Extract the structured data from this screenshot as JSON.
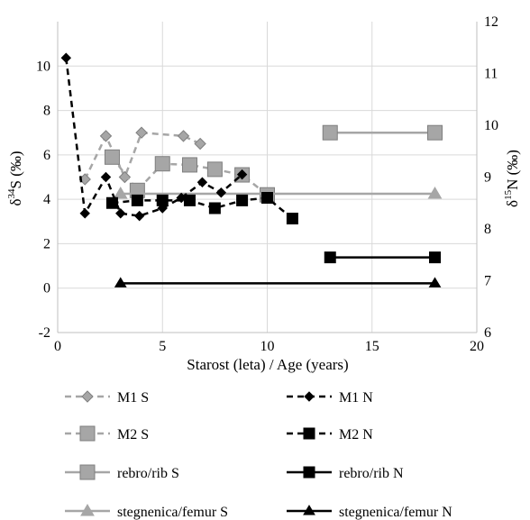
{
  "chart_data": {
    "type": "line",
    "xlabel": "Starost (leta) / Age (years)",
    "ylabel_left": "δ34S (‰)",
    "ylabel_right": "δ15N (‰)",
    "ylabel_left_parts": [
      "δ",
      "34",
      "S (‰)"
    ],
    "ylabel_right_parts": [
      "δ",
      "15",
      "N (‰)"
    ],
    "xlim": [
      0,
      20
    ],
    "ylim_left": [
      -2,
      12
    ],
    "ylim_right": [
      6,
      12
    ],
    "x_ticks": [
      "0",
      "5",
      "10",
      "15",
      "20"
    ],
    "yleft_ticks": [
      "-2",
      "0",
      "2",
      "4",
      "6",
      "8",
      "10"
    ],
    "yright_ticks": [
      "6",
      "7",
      "8",
      "9",
      "10",
      "11",
      "12"
    ],
    "grid": true,
    "legend_position": "bottom",
    "series": [
      {
        "name": "M1 S",
        "axis": "left",
        "color": "#a6a6a6",
        "line": "dashed",
        "marker": "diamond",
        "points": [
          [
            1.3,
            4.9
          ],
          [
            2.3,
            6.85
          ],
          [
            3.2,
            5.0
          ],
          [
            4.0,
            7.0
          ],
          [
            6.0,
            6.85
          ],
          [
            6.8,
            6.5
          ]
        ]
      },
      {
        "name": "M2 S",
        "axis": "left",
        "color": "#a6a6a6",
        "line": "dashed",
        "marker": "square",
        "points": [
          [
            2.6,
            5.9
          ],
          [
            3.8,
            4.4
          ],
          [
            5.0,
            5.6
          ],
          [
            6.3,
            5.55
          ],
          [
            7.5,
            5.35
          ],
          [
            8.8,
            5.1
          ],
          [
            10.0,
            4.2
          ]
        ]
      },
      {
        "name": "rebro/rib S",
        "axis": "left",
        "color": "#a6a6a6",
        "line": "solid",
        "marker": "square",
        "points": [
          [
            13.0,
            7.0
          ],
          [
            18.0,
            7.0
          ]
        ]
      },
      {
        "name": "stegnenica/femur S",
        "axis": "left",
        "color": "#a6a6a6",
        "line": "solid",
        "marker": "triangle",
        "points": [
          [
            3.0,
            4.25
          ],
          [
            18.0,
            4.25
          ]
        ]
      },
      {
        "name": "M1 N",
        "axis": "right",
        "color": "#000000",
        "line": "dashed",
        "marker": "diamond",
        "points": [
          [
            0.4,
            11.3
          ],
          [
            1.3,
            8.3
          ],
          [
            2.3,
            9.0
          ],
          [
            3.0,
            8.3
          ],
          [
            3.9,
            8.25
          ],
          [
            5.0,
            8.4
          ],
          [
            5.9,
            8.6
          ],
          [
            6.9,
            8.9
          ],
          [
            7.8,
            8.7
          ],
          [
            8.8,
            9.05
          ]
        ]
      },
      {
        "name": "M2 N",
        "axis": "right",
        "color": "#000000",
        "line": "dashed",
        "marker": "square",
        "points": [
          [
            2.6,
            8.5
          ],
          [
            3.8,
            8.55
          ],
          [
            5.0,
            8.55
          ],
          [
            6.3,
            8.55
          ],
          [
            7.5,
            8.4
          ],
          [
            8.8,
            8.55
          ],
          [
            10.0,
            8.6
          ],
          [
            11.2,
            8.2
          ]
        ]
      },
      {
        "name": "rebro/rib N",
        "axis": "right",
        "color": "#000000",
        "line": "solid",
        "marker": "square",
        "points": [
          [
            13.0,
            7.45
          ],
          [
            18.0,
            7.45
          ]
        ]
      },
      {
        "name": "stegnenica/femur N",
        "axis": "right",
        "color": "#000000",
        "line": "solid",
        "marker": "triangle",
        "points": [
          [
            3.0,
            6.95
          ],
          [
            18.0,
            6.95
          ]
        ]
      }
    ]
  }
}
